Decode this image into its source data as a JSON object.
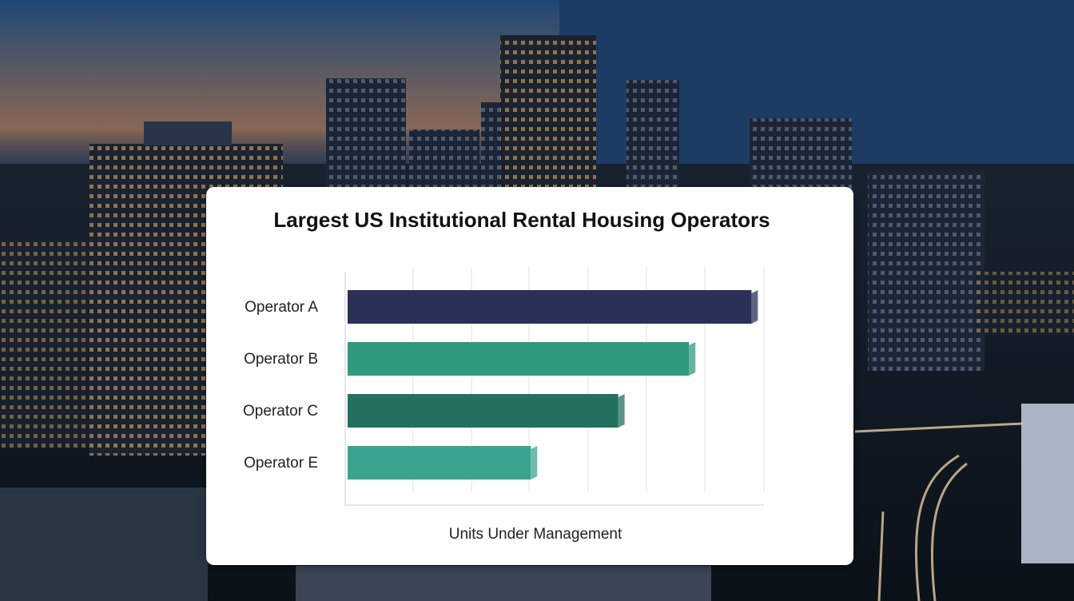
{
  "chart_data": {
    "type": "bar",
    "orientation": "horizontal",
    "title": "Largest US Institutional Rental Housing Operators",
    "x_label": "Units Under Management",
    "categories": [
      "Operator A",
      "Operator B",
      "Operator C",
      "Operator E"
    ],
    "values": [
      97,
      82,
      65,
      44
    ],
    "colors": [
      "#2b3058",
      "#2f9a80",
      "#24705f",
      "#3aa58e"
    ],
    "xlim": [
      0,
      100
    ]
  }
}
